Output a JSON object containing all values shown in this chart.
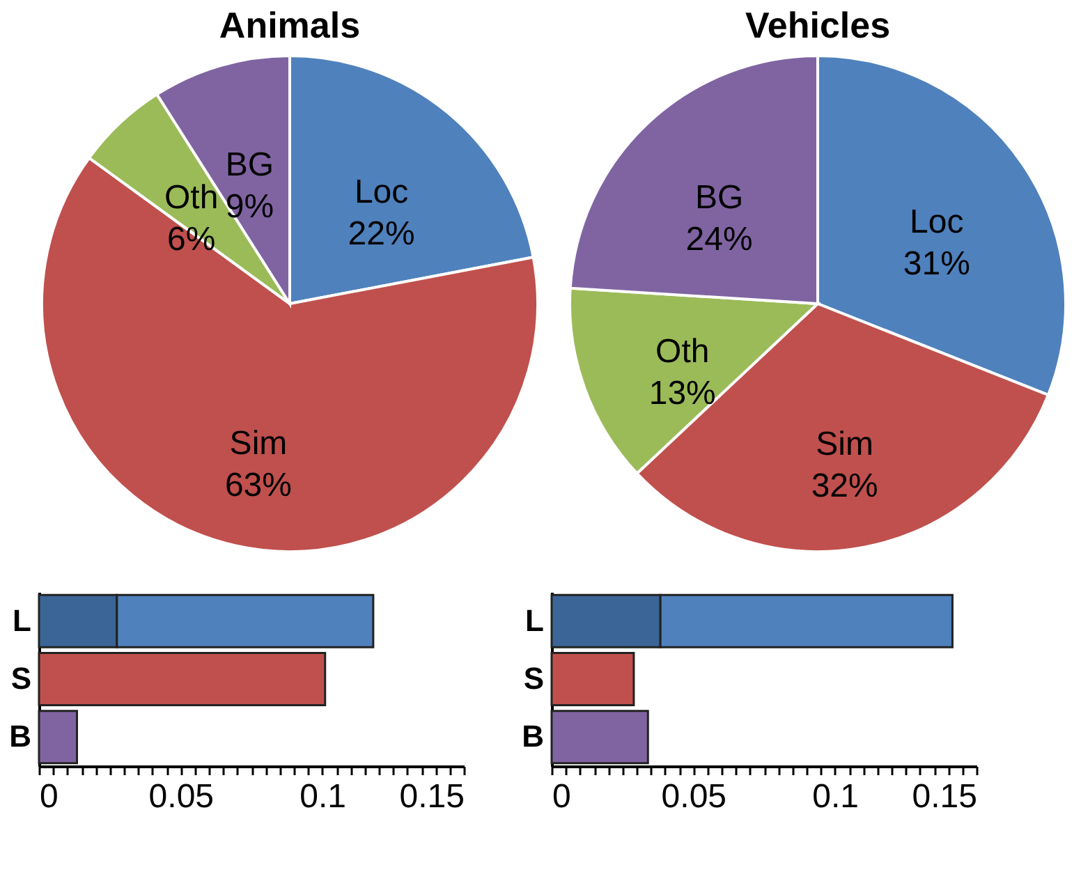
{
  "chart_data": [
    {
      "type": "pie",
      "title": "Animals",
      "categories": [
        "Loc",
        "Sim",
        "Oth",
        "BG"
      ],
      "values": [
        22,
        63,
        6,
        9
      ],
      "value_labels": [
        "22%",
        "63%",
        "6%",
        "9%"
      ],
      "colors": [
        "#4f81bd",
        "#c0504d",
        "#9bbb59",
        "#8064a2"
      ],
      "legend": false
    },
    {
      "type": "pie",
      "title": "Vehicles",
      "categories": [
        "Loc",
        "Sim",
        "Oth",
        "BG"
      ],
      "values": [
        31,
        32,
        13,
        24
      ],
      "value_labels": [
        "31%",
        "32%",
        "13%",
        "24%"
      ],
      "colors": [
        "#4f81bd",
        "#c0504d",
        "#9bbb59",
        "#8064a2"
      ],
      "legend": false
    },
    {
      "type": "bar",
      "orientation": "horizontal",
      "stacked": true,
      "categories": [
        "L",
        "S",
        "B"
      ],
      "series": [
        {
          "colors": [
            "#3b6596",
            null,
            null
          ],
          "values": [
            0.0275,
            null,
            null
          ]
        },
        {
          "colors": [
            "#4f81bd",
            "#c0504d",
            "#8064a2"
          ],
          "values": [
            0.0905,
            0.101,
            0.0134
          ]
        }
      ],
      "xlim": [
        0,
        0.15
      ],
      "xticks": [
        0,
        {
          "value": 0.005,
          "label": null
        },
        {
          "value": 0.01,
          "label": null
        },
        {
          "value": 0.015,
          "label": null
        },
        {
          "value": 0.02,
          "label": null
        },
        {
          "value": 0.025,
          "label": null
        },
        {
          "value": 0.03,
          "label": null
        },
        {
          "value": 0.035,
          "label": null
        },
        {
          "value": 0.04,
          "label": null
        },
        {
          "value": 0.045,
          "label": null
        },
        0.05,
        {
          "value": 0.055,
          "label": null
        },
        {
          "value": 0.06,
          "label": null
        },
        {
          "value": 0.065,
          "label": null
        },
        {
          "value": 0.07,
          "label": null
        },
        {
          "value": 0.075,
          "label": null
        },
        {
          "value": 0.08,
          "label": null
        },
        {
          "value": 0.085,
          "label": null
        },
        {
          "value": 0.09,
          "label": null
        },
        {
          "value": 0.095,
          "label": null
        },
        0.1,
        {
          "value": 0.105,
          "label": null
        },
        {
          "value": 0.11,
          "label": null
        },
        {
          "value": 0.115,
          "label": null
        },
        {
          "value": 0.12,
          "label": null
        },
        {
          "value": 0.125,
          "label": null
        },
        {
          "value": 0.13,
          "label": null
        },
        {
          "value": 0.135,
          "label": null
        },
        {
          "value": 0.14,
          "label": null
        },
        {
          "value": 0.145,
          "label": null
        },
        0.15
      ],
      "grid": false
    },
    {
      "type": "bar",
      "orientation": "horizontal",
      "stacked": true,
      "categories": [
        "L",
        "S",
        "B"
      ],
      "series": [
        {
          "colors": [
            "#3b6596",
            null,
            null
          ],
          "values": [
            0.0384,
            null,
            null
          ]
        },
        {
          "colors": [
            "#4f81bd",
            "#c0504d",
            "#8064a2"
          ],
          "values": [
            0.1031,
            0.029,
            0.034
          ]
        }
      ],
      "xlim": [
        0,
        0.15
      ],
      "xticks": [
        0,
        {
          "value": 0.005,
          "label": null
        },
        {
          "value": 0.01,
          "label": null
        },
        {
          "value": 0.015,
          "label": null
        },
        {
          "value": 0.02,
          "label": null
        },
        {
          "value": 0.025,
          "label": null
        },
        {
          "value": 0.03,
          "label": null
        },
        {
          "value": 0.035,
          "label": null
        },
        {
          "value": 0.04,
          "label": null
        },
        {
          "value": 0.045,
          "label": null
        },
        0.05,
        {
          "value": 0.055,
          "label": null
        },
        {
          "value": 0.06,
          "label": null
        },
        {
          "value": 0.065,
          "label": null
        },
        {
          "value": 0.07,
          "label": null
        },
        {
          "value": 0.075,
          "label": null
        },
        {
          "value": 0.08,
          "label": null
        },
        {
          "value": 0.085,
          "label": null
        },
        {
          "value": 0.09,
          "label": null
        },
        {
          "value": 0.095,
          "label": null
        },
        0.1,
        {
          "value": 0.105,
          "label": null
        },
        {
          "value": 0.11,
          "label": null
        },
        {
          "value": 0.115,
          "label": null
        },
        {
          "value": 0.12,
          "label": null
        },
        {
          "value": 0.125,
          "label": null
        },
        {
          "value": 0.13,
          "label": null
        },
        {
          "value": 0.135,
          "label": null
        },
        {
          "value": 0.14,
          "label": null
        },
        {
          "value": 0.145,
          "label": null
        },
        0.15
      ],
      "grid": false
    }
  ]
}
